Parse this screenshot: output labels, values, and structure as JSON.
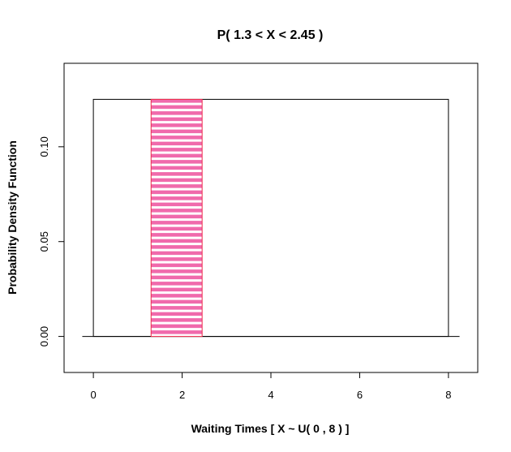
{
  "chart_data": {
    "type": "area",
    "title": "P( 1.3 < X < 2.45 )",
    "xlabel": "Waiting Times [ X ~ U( 0 , 8  ) ]",
    "ylabel": "Probability Density Function",
    "xlim": [
      -0.66,
      8.66
    ],
    "ylim": [
      -0.019,
      0.144
    ],
    "xticks": [
      0,
      2,
      4,
      6,
      8
    ],
    "xtick_labels": [
      "0",
      "2",
      "4",
      "6",
      "8"
    ],
    "yticks": [
      0.0,
      0.05,
      0.1
    ],
    "ytick_labels": [
      "0.00",
      "0.05",
      "0.10"
    ],
    "density": {
      "a": 0,
      "b": 8,
      "height": 0.125
    },
    "baseline": {
      "from": -0.25,
      "to": 8.25
    },
    "shaded_region": {
      "from": 1.3,
      "to": 2.45
    },
    "grid": false,
    "legend": "none",
    "colors": {
      "shade": "#f06aac",
      "shade_border": "#ee2a4a",
      "line": "#000000"
    }
  }
}
